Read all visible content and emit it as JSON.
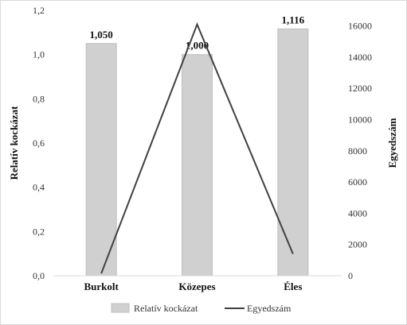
{
  "chart_data": {
    "type": "bar",
    "categories": [
      "Burkolt",
      "Közepes",
      "Éles"
    ],
    "series": [
      {
        "name": "Relatív kockázat",
        "type": "bar",
        "axis": "left",
        "values": [
          1.05,
          1.0,
          1.116
        ],
        "labels": [
          "1,050",
          "1,000",
          "1,116"
        ],
        "color": "#d0d0d0",
        "stroke": "#bfbfbf"
      },
      {
        "name": "Egyedszám",
        "type": "line",
        "axis": "right",
        "values": [
          150,
          16100,
          1400
        ],
        "color": "#404040"
      }
    ],
    "ylabel": "Relatív kockázat",
    "y2label": "Egyedszám",
    "ylim": [
      0,
      1.2
    ],
    "y2lim": [
      0,
      17000
    ],
    "yticks": [
      "0,0",
      "0,2",
      "0,4",
      "0,6",
      "0,8",
      "1,0",
      "1,2"
    ],
    "y2ticks": [
      "0",
      "2000",
      "4000",
      "6000",
      "8000",
      "10000",
      "12000",
      "14000",
      "16000"
    ],
    "grid": false,
    "legend_position": "bottom"
  },
  "legend": {
    "bar_label": "Relatív kockázat",
    "line_label": "Egyedszám"
  }
}
